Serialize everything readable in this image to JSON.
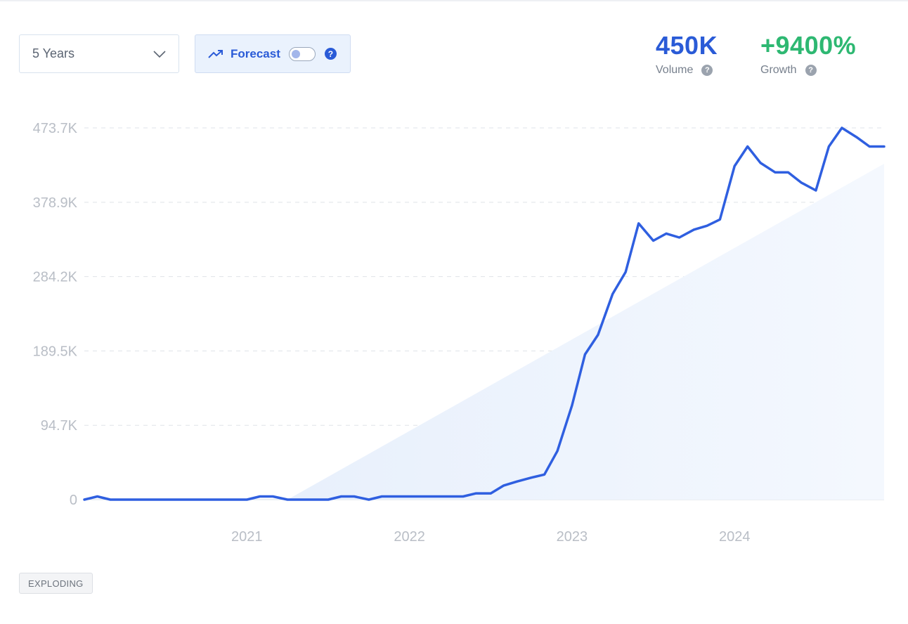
{
  "controls": {
    "range_label": "5 Years",
    "forecast_label": "Forecast",
    "forecast_enabled": false,
    "help_glyph": "?"
  },
  "stats": {
    "volume_value": "450K",
    "volume_label": "Volume",
    "growth_value": "+9400%",
    "growth_label": "Growth"
  },
  "badge": {
    "label": "EXPLODING"
  },
  "colors": {
    "line": "#2f5fe0",
    "volume": "#2a5bd7",
    "growth": "#2eb872",
    "trend_fill": "#eaf1fc"
  },
  "icons": {
    "range_dropdown": "chevron-down-icon",
    "forecast": "trending-up-icon",
    "help": "question-circle-icon"
  },
  "chart_data": {
    "type": "line",
    "title": "",
    "xlabel": "",
    "ylabel": "",
    "ylim": [
      0,
      473700
    ],
    "xlim": [
      2020.0,
      2024.92
    ],
    "grid": true,
    "y_ticks": [
      {
        "value": 0,
        "label": "0"
      },
      {
        "value": 94700,
        "label": "94.7K"
      },
      {
        "value": 189500,
        "label": "189.5K"
      },
      {
        "value": 284200,
        "label": "284.2K"
      },
      {
        "value": 378900,
        "label": "378.9K"
      },
      {
        "value": 473700,
        "label": "473.7K"
      }
    ],
    "x_ticks": [
      {
        "value": 2021,
        "label": "2021"
      },
      {
        "value": 2022,
        "label": "2022"
      },
      {
        "value": 2023,
        "label": "2023"
      },
      {
        "value": 2024,
        "label": "2024"
      }
    ],
    "series": [
      {
        "points": [
          [
            2020.0,
            0
          ],
          [
            2020.08,
            4000
          ],
          [
            2020.16,
            0
          ],
          [
            2020.5,
            0
          ],
          [
            2021.0,
            0
          ],
          [
            2021.08,
            4000
          ],
          [
            2021.16,
            4000
          ],
          [
            2021.25,
            0
          ],
          [
            2021.5,
            0
          ],
          [
            2021.58,
            4000
          ],
          [
            2021.66,
            4000
          ],
          [
            2021.75,
            0
          ],
          [
            2021.83,
            4000
          ],
          [
            2022.0,
            4000
          ],
          [
            2022.33,
            4000
          ],
          [
            2022.41,
            8000
          ],
          [
            2022.5,
            8000
          ],
          [
            2022.58,
            18000
          ],
          [
            2022.66,
            23000
          ],
          [
            2022.75,
            28000
          ],
          [
            2022.83,
            32000
          ],
          [
            2022.91,
            62000
          ],
          [
            2023.0,
            120000
          ],
          [
            2023.08,
            185000
          ],
          [
            2023.16,
            210000
          ],
          [
            2023.25,
            262000
          ],
          [
            2023.33,
            290000
          ],
          [
            2023.41,
            352000
          ],
          [
            2023.5,
            330000
          ],
          [
            2023.58,
            339000
          ],
          [
            2023.66,
            334000
          ],
          [
            2023.75,
            344000
          ],
          [
            2023.83,
            349000
          ],
          [
            2023.91,
            357000
          ],
          [
            2024.0,
            425000
          ],
          [
            2024.08,
            450000
          ],
          [
            2024.16,
            429000
          ],
          [
            2024.25,
            417000
          ],
          [
            2024.33,
            417000
          ],
          [
            2024.41,
            404000
          ],
          [
            2024.5,
            394000
          ],
          [
            2024.58,
            450000
          ],
          [
            2024.66,
            473700
          ],
          [
            2024.75,
            462000
          ],
          [
            2024.83,
            450000
          ],
          [
            2024.92,
            450000
          ]
        ]
      }
    ],
    "trend_band": [
      [
        2021.25,
        0
      ],
      [
        2024.92,
        428000
      ]
    ]
  }
}
